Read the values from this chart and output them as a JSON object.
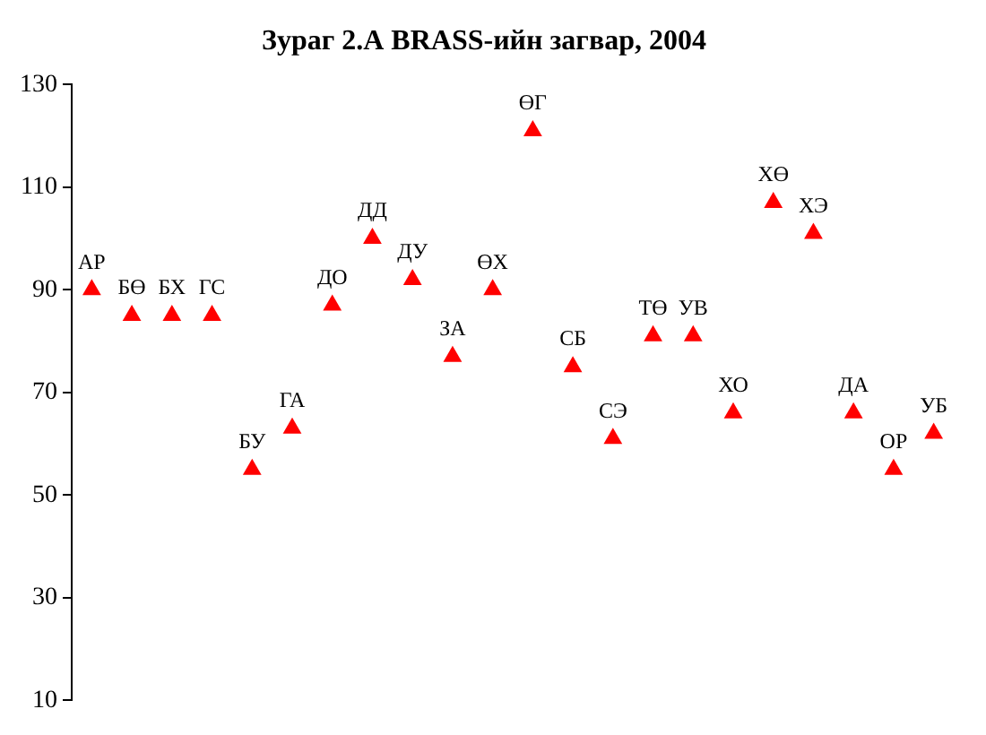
{
  "chart_data": {
    "type": "scatter",
    "title": "Зураг 2.А BRASS-ийн загвар, 2004",
    "categories": [
      "АР",
      "БӨ",
      "БХ",
      "ГС",
      "БУ",
      "ГА",
      "ДО",
      "ДД",
      "ДУ",
      "ЗА",
      "ӨХ",
      "ӨГ",
      "СБ",
      "СЭ",
      "ТӨ",
      "УВ",
      "ХО",
      "ХӨ",
      "ХЭ",
      "ДА",
      "ОР",
      "УБ"
    ],
    "values": [
      90,
      85,
      85,
      85,
      55,
      63,
      87,
      100,
      92,
      77,
      90,
      121,
      75,
      61,
      81,
      81,
      66,
      107,
      101,
      66,
      55,
      62
    ],
    "color": "#ff0000",
    "marker": "triangle",
    "ylim": [
      10,
      130
    ],
    "yticks": [
      10,
      30,
      50,
      70,
      90,
      110,
      130
    ],
    "grid": false,
    "legend": false,
    "tick_labels": "y"
  }
}
